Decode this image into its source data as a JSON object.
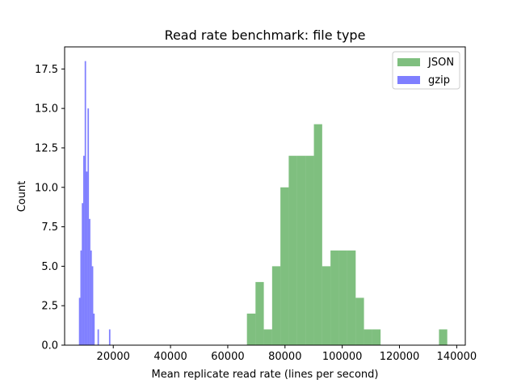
{
  "chart_data": {
    "type": "bar",
    "title": "Read rate benchmark: file type",
    "xlabel": "Mean replicate read rate (lines per second)",
    "ylabel": "Count",
    "xlim": [
      3000,
      143000
    ],
    "ylim": [
      0,
      18.9
    ],
    "xticks": [
      20000,
      40000,
      60000,
      80000,
      100000,
      120000,
      140000
    ],
    "xtick_labels": [
      "20000",
      "40000",
      "60000",
      "80000",
      "100000",
      "120000",
      "140000"
    ],
    "yticks": [
      0,
      2.5,
      5,
      7.5,
      10,
      12.5,
      15,
      17.5
    ],
    "ytick_labels": [
      "0.0",
      "2.5",
      "5.0",
      "7.5",
      "10.0",
      "12.5",
      "15.0",
      "17.5"
    ],
    "legend_position": "top-right",
    "series": [
      {
        "name": "JSON",
        "color": "#008000",
        "alpha": 0.5,
        "bins": [
          {
            "x0": 66700,
            "x1": 69700,
            "count": 2
          },
          {
            "x0": 69700,
            "x1": 72600,
            "count": 4
          },
          {
            "x0": 72600,
            "x1": 75500,
            "count": 1
          },
          {
            "x0": 75500,
            "x1": 78400,
            "count": 5
          },
          {
            "x0": 78400,
            "x1": 81300,
            "count": 10
          },
          {
            "x0": 81300,
            "x1": 84200,
            "count": 12
          },
          {
            "x0": 84200,
            "x1": 87200,
            "count": 12
          },
          {
            "x0": 87200,
            "x1": 90100,
            "count": 12
          },
          {
            "x0": 90100,
            "x1": 93000,
            "count": 14
          },
          {
            "x0": 93000,
            "x1": 95900,
            "count": 5
          },
          {
            "x0": 95900,
            "x1": 98800,
            "count": 6
          },
          {
            "x0": 98800,
            "x1": 101700,
            "count": 6
          },
          {
            "x0": 101700,
            "x1": 104700,
            "count": 6
          },
          {
            "x0": 104700,
            "x1": 107600,
            "count": 3
          },
          {
            "x0": 107600,
            "x1": 110500,
            "count": 1
          },
          {
            "x0": 110500,
            "x1": 113400,
            "count": 1
          },
          {
            "x0": 113400,
            "x1": 116300,
            "count": 0
          },
          {
            "x0": 116300,
            "x1": 119200,
            "count": 0
          },
          {
            "x0": 119200,
            "x1": 122200,
            "count": 0
          },
          {
            "x0": 122200,
            "x1": 125100,
            "count": 0
          },
          {
            "x0": 125100,
            "x1": 128000,
            "count": 0
          },
          {
            "x0": 128000,
            "x1": 130900,
            "count": 0
          },
          {
            "x0": 130900,
            "x1": 133800,
            "count": 0
          },
          {
            "x0": 133800,
            "x1": 136700,
            "count": 1
          }
        ]
      },
      {
        "name": "gzip",
        "color": "#0000ff",
        "alpha": 0.5,
        "bins": [
          {
            "x0": 8000,
            "x1": 8500,
            "count": 3
          },
          {
            "x0": 8500,
            "x1": 9000,
            "count": 6
          },
          {
            "x0": 9000,
            "x1": 9500,
            "count": 9
          },
          {
            "x0": 9500,
            "x1": 10000,
            "count": 12
          },
          {
            "x0": 10000,
            "x1": 10500,
            "count": 18
          },
          {
            "x0": 10500,
            "x1": 11000,
            "count": 11
          },
          {
            "x0": 11000,
            "x1": 11500,
            "count": 15
          },
          {
            "x0": 11500,
            "x1": 12000,
            "count": 8
          },
          {
            "x0": 12000,
            "x1": 12500,
            "count": 6
          },
          {
            "x0": 12500,
            "x1": 13000,
            "count": 5
          },
          {
            "x0": 13000,
            "x1": 13500,
            "count": 2
          },
          {
            "x0": 13500,
            "x1": 14000,
            "count": 0
          },
          {
            "x0": 14000,
            "x1": 14500,
            "count": 0
          },
          {
            "x0": 14500,
            "x1": 15000,
            "count": 1
          },
          {
            "x0": 18500,
            "x1": 19000,
            "count": 1
          }
        ]
      }
    ]
  }
}
